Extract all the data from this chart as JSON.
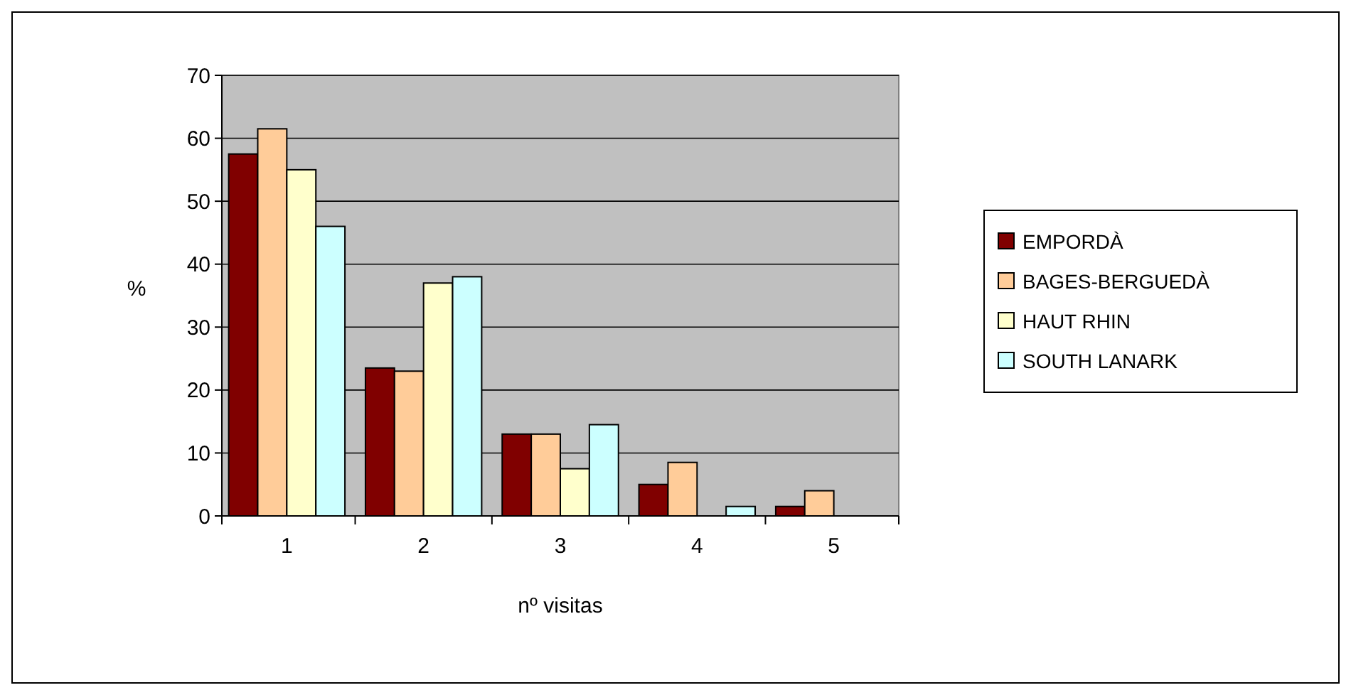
{
  "chart_data": {
    "type": "bar",
    "xlabel": "nº visitas",
    "ylabel": "%",
    "categories": [
      "1",
      "2",
      "3",
      "4",
      "5"
    ],
    "series": [
      {
        "name": "EMPORDÀ",
        "color": "#800000",
        "values": [
          57.5,
          23.5,
          13,
          5,
          1.5
        ]
      },
      {
        "name": "BAGES-BERGUEDÀ",
        "color": "#ffcc99",
        "values": [
          61.5,
          23,
          13,
          8.5,
          4
        ]
      },
      {
        "name": "HAUT RHIN",
        "color": "#ffffcc",
        "values": [
          55,
          37,
          7.5,
          0,
          0
        ]
      },
      {
        "name": "SOUTH LANARK",
        "color": "#ccffff",
        "values": [
          46,
          38,
          14.5,
          1.5,
          0
        ]
      }
    ],
    "ylim": [
      0,
      70
    ],
    "yticks": [
      0,
      10,
      20,
      30,
      40,
      50,
      60,
      70
    ],
    "grid": "y",
    "legend": "right"
  }
}
